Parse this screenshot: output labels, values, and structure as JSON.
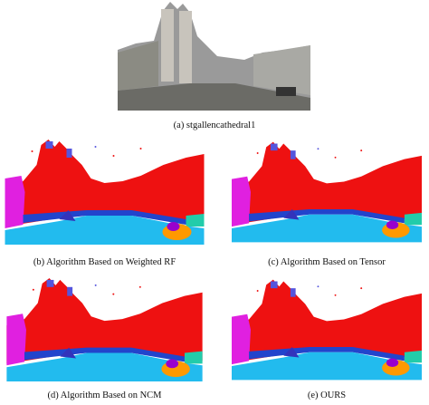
{
  "figures": [
    {
      "caption": "(a) stgallencathedral1"
    },
    {
      "caption": "(b) Algorithm Based on Weighted RF"
    },
    {
      "caption": "(c) Algorithm Based on Tensor"
    },
    {
      "caption": "(d) Algorithm Based on NCM"
    },
    {
      "caption": "(e) OURS"
    }
  ]
}
